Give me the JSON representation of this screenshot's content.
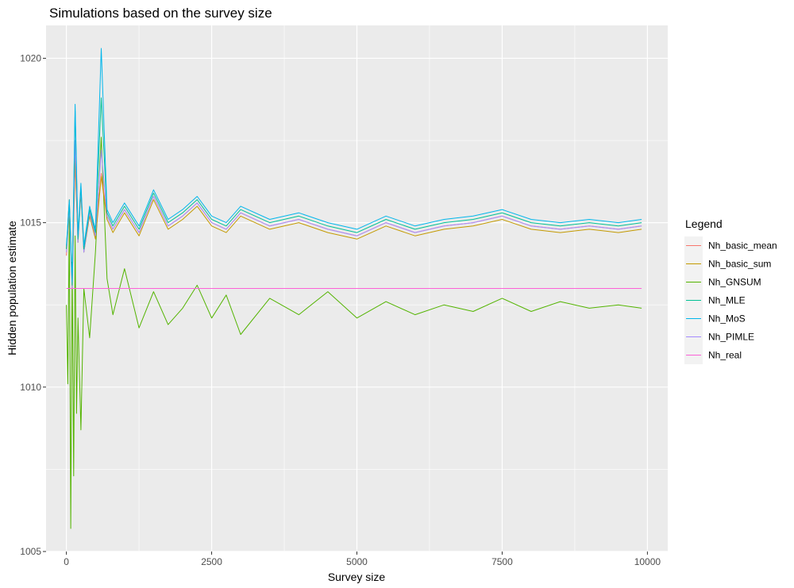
{
  "chart_data": {
    "type": "line",
    "title": "Simulations based on the survey size",
    "xlabel": "Survey size",
    "ylabel": "Hidden population estimate",
    "xlim": [
      -350,
      10350
    ],
    "ylim": [
      1005,
      1021
    ],
    "x_ticks": [
      0,
      2500,
      5000,
      7500,
      10000
    ],
    "x_tick_labels": [
      "0",
      "2500",
      "5000",
      "7500",
      "10000"
    ],
    "y_ticks": [
      1005,
      1010,
      1015,
      1020
    ],
    "y_tick_labels": [
      "1005",
      "1010",
      "1015",
      "1020"
    ],
    "grid": true,
    "legend_title": "Legend",
    "legend_position": "right",
    "series": [
      {
        "name": "Nh_basic_mean",
        "color": "#F8766D",
        "x": [
          0,
          50,
          100,
          150,
          200,
          250,
          300,
          400,
          500,
          600,
          700,
          800,
          1000,
          1250,
          1500,
          1750,
          2000,
          2250,
          2500,
          2750,
          3000,
          3500,
          4000,
          4500,
          5000,
          5500,
          6000,
          6500,
          7000,
          7500,
          8000,
          8500,
          9000,
          9500,
          9900
        ],
        "y": [
          1014.0,
          1015.5,
          1013.0,
          1016.8,
          1014.5,
          1016.0,
          1014.2,
          1015.3,
          1014.6,
          1016.5,
          1015.2,
          1014.8,
          1015.4,
          1014.7,
          1015.8,
          1014.9,
          1015.2,
          1015.6,
          1015.0,
          1014.8,
          1015.3,
          1014.9,
          1015.1,
          1014.8,
          1014.6,
          1015.0,
          1014.7,
          1014.9,
          1015.0,
          1015.2,
          1014.9,
          1014.8,
          1014.9,
          1014.8,
          1014.9
        ]
      },
      {
        "name": "Nh_basic_sum",
        "color": "#C49A00",
        "x": [
          0,
          50,
          100,
          150,
          200,
          250,
          300,
          400,
          500,
          600,
          700,
          800,
          1000,
          1250,
          1500,
          1750,
          2000,
          2250,
          2500,
          2750,
          3000,
          3500,
          4000,
          4500,
          5000,
          5500,
          6000,
          6500,
          7000,
          7500,
          8000,
          8500,
          9000,
          9500,
          9900
        ],
        "y": [
          1014.2,
          1015.7,
          1013.1,
          1017.0,
          1014.4,
          1015.9,
          1014.1,
          1015.2,
          1014.5,
          1016.4,
          1015.1,
          1014.7,
          1015.3,
          1014.6,
          1015.7,
          1014.8,
          1015.1,
          1015.5,
          1014.9,
          1014.7,
          1015.2,
          1014.8,
          1015.0,
          1014.7,
          1014.5,
          1014.9,
          1014.6,
          1014.8,
          1014.9,
          1015.1,
          1014.8,
          1014.7,
          1014.8,
          1014.7,
          1014.8
        ]
      },
      {
        "name": "Nh_GNSUM",
        "color": "#53B400",
        "x": [
          0,
          25,
          50,
          75,
          100,
          125,
          150,
          175,
          200,
          250,
          300,
          400,
          500,
          600,
          700,
          800,
          1000,
          1250,
          1500,
          1750,
          2000,
          2250,
          2500,
          2750,
          3000,
          3500,
          4000,
          4500,
          5000,
          5500,
          6000,
          6500,
          7000,
          7500,
          8000,
          8500,
          9000,
          9500,
          9900
        ],
        "y": [
          1012.5,
          1010.1,
          1015.2,
          1005.7,
          1013.8,
          1007.3,
          1014.6,
          1009.2,
          1012.1,
          1008.7,
          1013.0,
          1011.5,
          1014.1,
          1017.6,
          1013.3,
          1012.2,
          1013.6,
          1011.8,
          1012.9,
          1011.9,
          1012.4,
          1013.1,
          1012.1,
          1012.8,
          1011.6,
          1012.7,
          1012.2,
          1012.9,
          1012.1,
          1012.6,
          1012.2,
          1012.5,
          1012.3,
          1012.7,
          1012.3,
          1012.6,
          1012.4,
          1012.5,
          1012.4
        ]
      },
      {
        "name": "Nh_MLE",
        "color": "#00C094",
        "x": [
          0,
          50,
          100,
          150,
          200,
          250,
          300,
          400,
          500,
          600,
          700,
          800,
          1000,
          1250,
          1500,
          1750,
          2000,
          2250,
          2500,
          2750,
          3000,
          3500,
          4000,
          4500,
          5000,
          5500,
          6000,
          6500,
          7000,
          7500,
          8000,
          8500,
          9000,
          9500,
          9900
        ],
        "y": [
          1014.2,
          1015.6,
          1013.1,
          1018.4,
          1014.5,
          1016.1,
          1014.2,
          1015.4,
          1014.7,
          1018.8,
          1015.3,
          1014.9,
          1015.5,
          1014.8,
          1015.9,
          1015.0,
          1015.3,
          1015.7,
          1015.1,
          1014.9,
          1015.4,
          1015.0,
          1015.2,
          1014.9,
          1014.7,
          1015.1,
          1014.8,
          1015.0,
          1015.1,
          1015.3,
          1015.0,
          1014.9,
          1015.0,
          1014.9,
          1015.0
        ]
      },
      {
        "name": "Nh_MoS",
        "color": "#00B6EB",
        "x": [
          0,
          50,
          100,
          150,
          200,
          250,
          300,
          400,
          500,
          600,
          700,
          800,
          1000,
          1250,
          1500,
          1750,
          2000,
          2250,
          2500,
          2750,
          3000,
          3500,
          4000,
          4500,
          5000,
          5500,
          6000,
          6500,
          7000,
          7500,
          8000,
          8500,
          9000,
          9500,
          9900
        ],
        "y": [
          1014.3,
          1015.7,
          1013.2,
          1018.6,
          1014.6,
          1016.2,
          1014.3,
          1015.5,
          1014.8,
          1020.3,
          1015.4,
          1015.0,
          1015.6,
          1014.9,
          1016.0,
          1015.1,
          1015.4,
          1015.8,
          1015.2,
          1015.0,
          1015.5,
          1015.1,
          1015.3,
          1015.0,
          1014.8,
          1015.2,
          1014.9,
          1015.1,
          1015.2,
          1015.4,
          1015.1,
          1015.0,
          1015.1,
          1015.0,
          1015.1
        ]
      },
      {
        "name": "Nh_PIMLE",
        "color": "#A58AFF",
        "x": [
          0,
          50,
          100,
          150,
          200,
          250,
          300,
          400,
          500,
          600,
          700,
          800,
          1000,
          1250,
          1500,
          1750,
          2000,
          2250,
          2500,
          2750,
          3000,
          3500,
          4000,
          4500,
          5000,
          5500,
          6000,
          6500,
          7000,
          7500,
          8000,
          8500,
          9000,
          9500,
          9900
        ],
        "y": [
          1014.1,
          1015.5,
          1013.0,
          1017.5,
          1014.4,
          1016.0,
          1014.1,
          1015.3,
          1014.6,
          1017.2,
          1015.2,
          1014.8,
          1015.4,
          1014.7,
          1015.8,
          1014.9,
          1015.2,
          1015.6,
          1015.0,
          1014.8,
          1015.3,
          1014.9,
          1015.1,
          1014.8,
          1014.6,
          1015.0,
          1014.7,
          1014.9,
          1015.0,
          1015.2,
          1014.9,
          1014.8,
          1014.9,
          1014.8,
          1014.9
        ]
      },
      {
        "name": "Nh_real",
        "color": "#FB61D7",
        "x": [
          0,
          9900
        ],
        "y": [
          1013.0,
          1013.0
        ]
      }
    ]
  }
}
